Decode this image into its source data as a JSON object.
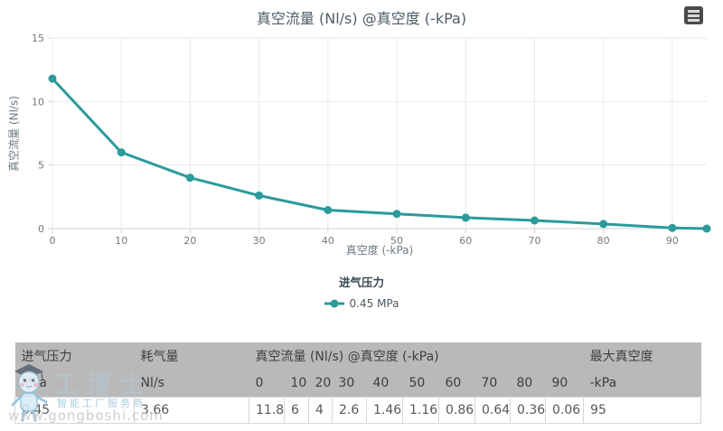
{
  "title": "真空流量 (Nl/s) @真空度 (-kPa)",
  "icons": {
    "menu": "hamburger-menu-icon",
    "legend_marker": "series-line-dot-marker"
  },
  "colors": {
    "series": "#2b9b9b",
    "grid": "#e9e9e9",
    "axis": "#d5d5d5",
    "tick_label": "#70797f",
    "axis_title": "#6b7a80",
    "title": "#4d5d66",
    "table_header_bg": "#b9b9b9",
    "watermark_blue": "#9ec6dc"
  },
  "chart_data": {
    "type": "line",
    "title": "真空流量 (Nl/s) @真空度 (-kPa)",
    "xlabel": "真空度 (-kPa)",
    "ylabel": "真空流量 (Nl/s)",
    "x": [
      0,
      10,
      20,
      30,
      40,
      50,
      60,
      70,
      80,
      90,
      95
    ],
    "series": [
      {
        "name": "0.45 MPa",
        "values": [
          11.8,
          6,
          4,
          2.6,
          1.46,
          1.16,
          0.86,
          0.64,
          0.36,
          0.06,
          0
        ]
      }
    ],
    "xlim": [
      0,
      95
    ],
    "ylim": [
      0,
      15
    ],
    "x_ticks": [
      0,
      10,
      20,
      30,
      40,
      50,
      60,
      70,
      80,
      90
    ],
    "y_ticks": [
      0,
      5,
      10,
      15
    ],
    "grid": true,
    "legend_title": "进气压力",
    "legend_position": "bottom"
  },
  "table": {
    "group_headers": [
      {
        "label": "进气压力",
        "span": 1
      },
      {
        "label": "耗气量",
        "span": 1
      },
      {
        "label": "真空流量 (Nl/s) @真空度 (-kPa)",
        "span": 10
      },
      {
        "label": "最大真空度",
        "span": 1
      }
    ],
    "unit_row": [
      "MPa",
      "Nl/s",
      "0",
      "10",
      "20",
      "30",
      "40",
      "50",
      "60",
      "70",
      "80",
      "90",
      "-kPa"
    ],
    "rows": [
      [
        "0.45",
        "3.66",
        "11.8",
        "6",
        "4",
        "2.6",
        "1.46",
        "1.16",
        "0.86",
        "0.64",
        "0.36",
        "0.06",
        "95"
      ]
    ]
  },
  "watermark": {
    "brand": "工博士",
    "tagline": "智能工厂服务商",
    "url": "www.gongboshi.com"
  }
}
